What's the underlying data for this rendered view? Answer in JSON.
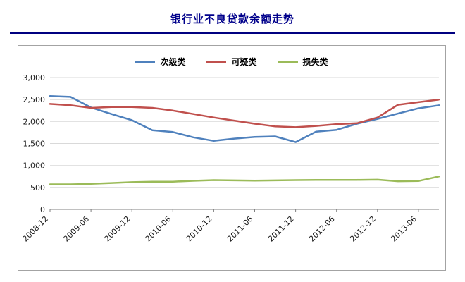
{
  "title": "银行业不良贷款余额走势",
  "colors": {
    "title": "#00008B",
    "title_rule": "#000080",
    "grid": "#d9d9d9",
    "axis": "#808080",
    "box_border": "#a3a3a3"
  },
  "chart_data": {
    "type": "line",
    "title": "银行业不良贷款余额走势",
    "xlabel": "",
    "ylabel": "",
    "ylim": [
      0,
      3000
    ],
    "yticks": [
      0,
      500,
      1000,
      1500,
      2000,
      2500,
      3000
    ],
    "ytick_labels": [
      "0",
      "500",
      "1,000",
      "1,500",
      "2,000",
      "2,500",
      "3,000"
    ],
    "grid": "horizontal-only",
    "legend_position": "top-center",
    "x": [
      "2008-12",
      "2009-03",
      "2009-06",
      "2009-09",
      "2009-12",
      "2010-03",
      "2010-06",
      "2010-09",
      "2010-12",
      "2011-03",
      "2011-06",
      "2011-09",
      "2011-12",
      "2012-03",
      "2012-06",
      "2012-09",
      "2012-12",
      "2013-03",
      "2013-06",
      "2013-09"
    ],
    "xtick_indices": [
      0,
      2,
      4,
      6,
      8,
      10,
      12,
      14,
      16,
      18
    ],
    "xtick_labels": [
      "2008-12",
      "2009-06",
      "2009-12",
      "2010-06",
      "2010-12",
      "2011-06",
      "2011-12",
      "2012-06",
      "2012-12",
      "2013-06"
    ],
    "series": [
      {
        "name": "次级类",
        "color": "#4f81bd",
        "values": [
          2580,
          2560,
          2320,
          2170,
          2030,
          1800,
          1760,
          1640,
          1560,
          1610,
          1650,
          1660,
          1530,
          1770,
          1810,
          1950,
          2060,
          2180,
          2300,
          2370
        ]
      },
      {
        "name": "可疑类",
        "color": "#c0504d",
        "values": [
          2400,
          2370,
          2310,
          2330,
          2330,
          2310,
          2250,
          2170,
          2090,
          2020,
          1950,
          1890,
          1870,
          1900,
          1940,
          1960,
          2090,
          2380,
          2440,
          2500
        ]
      },
      {
        "name": "损失类",
        "color": "#9bbb59",
        "values": [
          570,
          570,
          580,
          600,
          620,
          630,
          630,
          650,
          665,
          660,
          655,
          660,
          665,
          670,
          670,
          670,
          675,
          640,
          645,
          750
        ]
      }
    ]
  }
}
